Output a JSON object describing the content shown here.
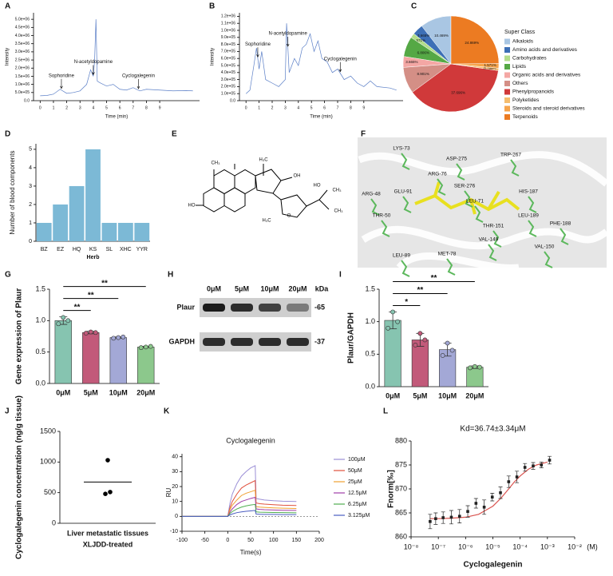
{
  "chart_data": [
    {
      "type": "line",
      "panel": "A",
      "y_label": "Intensity",
      "x_label": "Time (min)",
      "x": [
        0,
        0.5,
        1,
        1.5,
        2,
        2.5,
        3,
        3.5,
        3.8,
        4,
        4.1,
        4.2,
        4.3,
        4.5,
        5,
        5.5,
        6,
        6.5,
        7,
        7.5,
        8,
        9,
        10,
        11,
        11.5
      ],
      "series": [
        {
          "color": "#5b7fc7",
          "values": [
            300000,
            320000,
            400000,
            700000,
            450000,
            500000,
            600000,
            1000000,
            1900000,
            1500000,
            2500000,
            5000000,
            1200000,
            1100000,
            900000,
            1000000,
            700000,
            650000,
            800000,
            600000,
            700000,
            650000,
            600000,
            620000,
            600000
          ]
        }
      ],
      "xlim": [
        -0.5,
        12
      ],
      "xticks": [
        0,
        1,
        2,
        3,
        4,
        5,
        6,
        7,
        8,
        9
      ],
      "ylim": [
        0,
        5400000
      ],
      "yticks": [
        {
          "value": 0,
          "label": "0.0"
        },
        {
          "value": 500000,
          "label": "5.0e+05"
        },
        {
          "value": 1000000,
          "label": "1.0e+06"
        },
        {
          "value": 1500000,
          "label": "1.5e+06"
        },
        {
          "value": 2000000,
          "label": "2.0e+06"
        },
        {
          "value": 2500000,
          "label": "2.5e+06"
        },
        {
          "value": 3000000,
          "label": "3.0e+06"
        },
        {
          "value": 3500000,
          "label": "3.5e+06"
        },
        {
          "value": 4000000,
          "label": "4.0e+06"
        },
        {
          "value": 4500000,
          "label": "4.5e+06"
        },
        {
          "value": 5000000,
          "label": "5.0e+06"
        }
      ],
      "annotations": [
        {
          "text": "Sophoridine",
          "x": 1.6
        },
        {
          "text": "N-acetyldopamine",
          "x": 4.0
        },
        {
          "text": "Cyclogalegenin",
          "x": 7.4
        }
      ]
    },
    {
      "type": "line",
      "panel": "B",
      "y_label": "Intensity",
      "x_label": "Time (min)",
      "x": [
        0,
        0.3,
        0.6,
        0.8,
        1,
        1.2,
        1.5,
        2,
        2.5,
        3,
        3.1,
        3.3,
        3.7,
        4,
        4.3,
        4.6,
        4.9,
        5.2,
        5.5,
        5.8,
        6.2,
        6.6,
        7,
        7.5,
        8,
        8.5,
        9,
        9.5,
        10,
        11,
        11.5
      ],
      "series": [
        {
          "color": "#5b7fc7",
          "values": [
            100000,
            150000,
            500000,
            750000,
            450000,
            700000,
            300000,
            250000,
            200000,
            300000,
            1100000,
            400000,
            600000,
            500000,
            750000,
            800000,
            950000,
            700000,
            850000,
            600000,
            550000,
            400000,
            450000,
            300000,
            350000,
            250000,
            200000,
            280000,
            200000,
            180000,
            150000
          ]
        }
      ],
      "xlim": [
        -0.5,
        12
      ],
      "xticks": [
        0,
        1,
        2,
        3,
        4,
        5,
        6,
        7,
        8,
        9
      ],
      "ylim": [
        0,
        1250000
      ],
      "yticks": [
        {
          "value": 0,
          "label": "0.0"
        },
        {
          "value": 100000,
          "label": "1.0e+05"
        },
        {
          "value": 200000,
          "label": "2.0e+05"
        },
        {
          "value": 300000,
          "label": "3.0e+05"
        },
        {
          "value": 400000,
          "label": "4.0e+05"
        },
        {
          "value": 500000,
          "label": "5.0e+05"
        },
        {
          "value": 600000,
          "label": "6.0e+05"
        },
        {
          "value": 700000,
          "label": "7.0e+05"
        },
        {
          "value": 800000,
          "label": "8.0e+05"
        },
        {
          "value": 900000,
          "label": "9.0e+05"
        },
        {
          "value": 1000000,
          "label": "1.0e+06"
        },
        {
          "value": 1100000,
          "label": "1.1e+06"
        },
        {
          "value": 1200000,
          "label": "1.2e+06"
        }
      ],
      "annotations": [
        {
          "text": "Sophoridine",
          "x": 0.9
        },
        {
          "text": "N-acetyldopamine",
          "x": 3.2
        },
        {
          "text": "Cyclogalegenin",
          "x": 7.2
        }
      ]
    },
    {
      "type": "pie",
      "panel": "C",
      "legend_title": "Super Class",
      "categories": [
        "Alkaloids",
        "Amino acids and derivatives",
        "Carbohydrates",
        "Lipids",
        "Organic acids and derivatives",
        "Others",
        "Phenylpropanoids",
        "Polyketides",
        "Steroids and steroid derivatives",
        "Terpenoids"
      ],
      "values": [
        10.469,
        3.665,
        1.571,
        6.806,
        3.665,
        8.901,
        37.696,
        0.785,
        1.571,
        24.869
      ],
      "value_labels": [
        "10.469%",
        "3.665%",
        "1.571%",
        "6.806%",
        "3.665%",
        "8.901%",
        "37.696%",
        "0.785%",
        "1.571%",
        "24.869%"
      ],
      "colors": [
        "#a9c6e3",
        "#3d6fb6",
        "#b3dd8b",
        "#55a845",
        "#f4a7a4",
        "#d48f86",
        "#d0393a",
        "#f5bd6e",
        "#f6a44c",
        "#ec7b22"
      ]
    },
    {
      "type": "bar",
      "panel": "D",
      "y_label": "Number of blood components",
      "x_label": "Herb",
      "categories": [
        "BZ",
        "EZ",
        "HQ",
        "KS",
        "SL",
        "XHC",
        "YYR"
      ],
      "values": [
        1,
        2,
        3,
        5,
        1,
        1,
        1
      ],
      "color": "#7cb9d6",
      "ylim": [
        0,
        5.3
      ],
      "yticks": [
        0,
        1,
        2,
        3,
        4,
        5
      ]
    },
    {
      "type": "bar",
      "panel": "G",
      "y_label": "Gene expression of Plaur",
      "categories": [
        "0μM",
        "5μM",
        "10μM",
        "20μM"
      ],
      "values": [
        1.0,
        0.81,
        0.73,
        0.58
      ],
      "errors": [
        0.06,
        0.02,
        0.01,
        0.01
      ],
      "points": [
        [
          0.95,
          1.05,
          1.0
        ],
        [
          0.8,
          0.82,
          0.81
        ],
        [
          0.72,
          0.73,
          0.74
        ],
        [
          0.57,
          0.58,
          0.59
        ]
      ],
      "colors": [
        "#86c4b0",
        "#c25a7a",
        "#a3a8d6",
        "#8cc88c"
      ],
      "ylim": [
        0,
        1.5
      ],
      "yticks": [
        {
          "value": 0,
          "label": "0.0"
        },
        0.5,
        {
          "value": 1,
          "label": "1.0"
        },
        1.5
      ],
      "significance": [
        {
          "label": "**",
          "from": 0,
          "to": 1
        },
        {
          "label": "**",
          "from": 0,
          "to": 2
        },
        {
          "label": "**",
          "from": 0,
          "to": 3
        }
      ]
    },
    {
      "type": "bar",
      "panel": "I",
      "y_label": "Plaur/GAPDH",
      "categories": [
        "0μM",
        "5μM",
        "10μM",
        "20μM"
      ],
      "values": [
        1.02,
        0.72,
        0.57,
        0.3
      ],
      "errors": [
        0.13,
        0.1,
        0.1,
        0.02
      ],
      "points": [
        [
          0.9,
          1.15,
          1.0
        ],
        [
          0.64,
          0.82,
          0.72
        ],
        [
          0.48,
          0.67,
          0.56
        ],
        [
          0.29,
          0.31,
          0.3
        ]
      ],
      "colors": [
        "#86c4b0",
        "#c25a7a",
        "#a3a8d6",
        "#8cc88c"
      ],
      "ylim": [
        0,
        1.5
      ],
      "yticks": [
        {
          "value": 0,
          "label": "0.0"
        },
        0.5,
        {
          "value": 1,
          "label": "1.0"
        },
        1.5
      ],
      "significance": [
        {
          "label": "*",
          "from": 0,
          "to": 1
        },
        {
          "label": "**",
          "from": 0,
          "to": 2
        },
        {
          "label": "**",
          "from": 0,
          "to": 3
        }
      ]
    },
    {
      "type": "dot",
      "panel": "J",
      "y_label": "Cyclogalegenin concentration (ng/g tissue)",
      "x_label": "XLJDD-treated",
      "categories": [
        "Liver metastatic tissues"
      ],
      "points": [
        1030,
        480,
        510
      ],
      "mean": 673,
      "ylim": [
        0,
        1500
      ],
      "yticks": [
        0,
        500,
        1000,
        1500
      ]
    },
    {
      "type": "line",
      "panel": "K",
      "title": "Cyclogalegenin",
      "y_label": "RU",
      "x_label": "Time(s)",
      "x": [
        -100,
        -50,
        -1,
        0,
        5,
        10,
        20,
        30,
        40,
        50,
        60,
        62,
        70,
        80,
        100,
        120,
        150
      ],
      "series": [
        {
          "name": "100μM",
          "color": "#9b8fd6",
          "values": [
            0,
            0,
            0,
            0,
            9,
            15,
            22,
            27,
            30,
            32.5,
            34,
            12,
            11.5,
            11,
            10.5,
            10.2,
            10
          ]
        },
        {
          "name": "50μM",
          "color": "#e0503c",
          "values": [
            0,
            0,
            0,
            0,
            6,
            10,
            15,
            19,
            21,
            22.5,
            24,
            9,
            8.5,
            8.2,
            7.8,
            7.5,
            7.3
          ]
        },
        {
          "name": "25μM",
          "color": "#f0a030",
          "values": [
            0,
            0,
            0,
            0,
            4.5,
            7.5,
            11,
            14,
            15.5,
            16.5,
            17.5,
            6.5,
            6.2,
            6,
            5.7,
            5.5,
            5.3
          ]
        },
        {
          "name": "12.5μM",
          "color": "#a03ca8",
          "values": [
            0,
            0,
            0,
            0,
            3,
            5,
            8,
            10,
            11,
            12,
            12.8,
            5,
            4.7,
            4.5,
            4.3,
            4.1,
            4
          ]
        },
        {
          "name": "6.25μM",
          "color": "#4fae4f",
          "values": [
            0,
            0,
            0,
            0,
            2,
            3.2,
            5,
            6.2,
            7,
            7.6,
            8,
            3,
            2.8,
            2.7,
            2.6,
            2.5,
            2.4
          ]
        },
        {
          "name": "3.125μM",
          "color": "#4a5cc0",
          "values": [
            0,
            0,
            0,
            0,
            1,
            1.6,
            2.5,
            3,
            3.4,
            3.7,
            4,
            1.5,
            1.4,
            1.3,
            1.3,
            1.2,
            1.2
          ]
        }
      ],
      "xlim": [
        -100,
        200
      ],
      "xticks": [
        -100,
        -50,
        0,
        50,
        100,
        150,
        200
      ],
      "ylim": [
        -10,
        42
      ],
      "yticks": [
        -10,
        0,
        10,
        20,
        30,
        40
      ]
    },
    {
      "type": "scatter",
      "panel": "L",
      "title": "Kd=36.74±3.34μM",
      "y_label": "Fnorm[‰]",
      "x_label": "Cyclogalegenin",
      "x_unit": "(M)",
      "xscale": "log",
      "x": [
        5e-08,
        8e-08,
        1.5e-07,
        3e-07,
        6e-07,
        1.2e-06,
        2.4e-06,
        4.8e-06,
        9.5e-06,
        1.9e-05,
        3.8e-05,
        7.6e-05,
        0.00015,
        0.0003,
        0.0006,
        0.0012
      ],
      "values": [
        863.2,
        863.8,
        864,
        864.1,
        864.3,
        865.3,
        867,
        866.2,
        868.3,
        869.2,
        871.5,
        872.5,
        874.5,
        874.8,
        875,
        876
      ],
      "errors": [
        1.5,
        1.2,
        1.2,
        1.4,
        1.4,
        1.2,
        1,
        1.5,
        0.8,
        1.2,
        1.2,
        1.2,
        0.8,
        0.7,
        0.6,
        0.8
      ],
      "fit_x": [
        5e-08,
        1e-07,
        3e-07,
        1e-06,
        3e-06,
        1e-05,
        2e-05,
        3.67e-05,
        6e-05,
        0.0001,
        0.0002,
        0.0004,
        0.001
      ],
      "fit_values": [
        863.8,
        863.8,
        863.9,
        864.1,
        864.7,
        866.4,
        868.1,
        869.9,
        871.4,
        872.7,
        874.1,
        875,
        875.6
      ],
      "color": "#222222",
      "fit_color": "#d9534f",
      "xlim": [
        1e-08,
        0.01
      ],
      "xticks": [
        {
          "value": 1e-08,
          "label": "10⁻⁸"
        },
        {
          "value": 1e-07,
          "label": "10⁻⁷"
        },
        {
          "value": 1e-06,
          "label": "10⁻⁶"
        },
        {
          "value": 1e-05,
          "label": "10⁻⁵"
        },
        {
          "value": 0.0001,
          "label": "10⁻⁴"
        },
        {
          "value": 0.001,
          "label": "10⁻³"
        },
        {
          "value": 0.01,
          "label": "10⁻²"
        }
      ],
      "ylim": [
        860,
        880
      ],
      "yticks": [
        860,
        865,
        870,
        875,
        880
      ]
    }
  ],
  "figure": {
    "structure": {
      "panel": "E",
      "labels": [
        "CH₃",
        "HO",
        "H₃C",
        "OH",
        "HO",
        "CH₃",
        "O",
        "H₃C",
        "CH₃"
      ]
    },
    "docking": {
      "panel": "F",
      "residues": [
        "LYS-73",
        "ASP-275",
        "TRP-267",
        "ARG-48",
        "ARG-76",
        "SER-276",
        "GLU-91",
        "HIS-187",
        "LEU-71",
        "THR-50",
        "LEU-189",
        "PHE-188",
        "THR-151",
        "VAL-149",
        "VAL-150",
        "LEU-89",
        "MET-78"
      ]
    },
    "western_blot": {
      "panel": "H",
      "lanes": [
        "0μM",
        "5μM",
        "10μM",
        "20μM"
      ],
      "unit": "kDa",
      "rows": [
        {
          "name": "Plaur",
          "size": "-65"
        },
        {
          "name": "GAPDH",
          "size": "-37"
        }
      ]
    }
  }
}
